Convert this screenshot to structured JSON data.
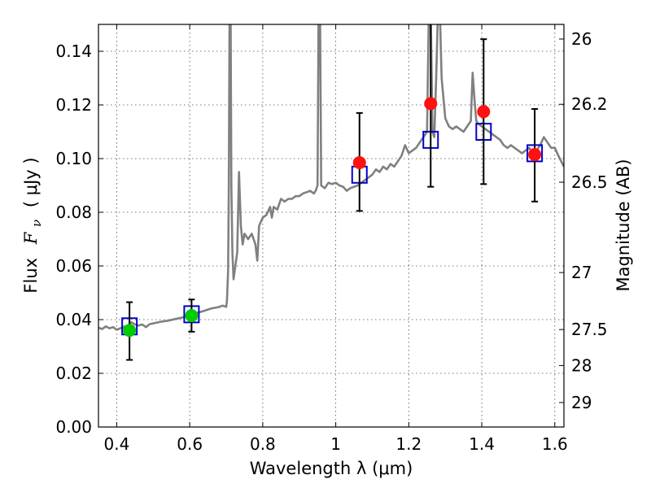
{
  "chart_data": {
    "type": "scatter",
    "xlabel": "Wavelength  λ (μm)",
    "ylabel": "Flux  F_ν ( μJy )",
    "ylabel_parts": {
      "prefix": "Flux",
      "symbol": "F",
      "subscript": "ν",
      "unit": "( μJy )"
    },
    "ylabel_right": "Magnitude (AB)",
    "xlim": [
      0.35,
      1.625
    ],
    "ylim": [
      0.0,
      0.15
    ],
    "grid": true,
    "x_ticks": [
      {
        "value": 0.4,
        "label": "0.4"
      },
      {
        "value": 0.6,
        "label": "0.6"
      },
      {
        "value": 0.8,
        "label": "0.8"
      },
      {
        "value": 1.0,
        "label": "1"
      },
      {
        "value": 1.2,
        "label": "1.2"
      },
      {
        "value": 1.4,
        "label": "1.4"
      },
      {
        "value": 1.6,
        "label": "1.6"
      }
    ],
    "y_ticks": [
      {
        "value": 0.0,
        "label": "0.00"
      },
      {
        "value": 0.02,
        "label": "0.02"
      },
      {
        "value": 0.04,
        "label": "0.04"
      },
      {
        "value": 0.06,
        "label": "0.06"
      },
      {
        "value": 0.08,
        "label": "0.08"
      },
      {
        "value": 0.1,
        "label": "0.10"
      },
      {
        "value": 0.12,
        "label": "0.12"
      },
      {
        "value": 0.14,
        "label": "0.14"
      }
    ],
    "right_ticks": [
      {
        "value": 26,
        "label": "26"
      },
      {
        "value": 26.2,
        "label": "26.2"
      },
      {
        "value": 26.5,
        "label": "26.5"
      },
      {
        "value": 27,
        "label": "27"
      },
      {
        "value": 27.5,
        "label": "27.5"
      },
      {
        "value": 28,
        "label": "28"
      },
      {
        "value": 29,
        "label": "29"
      }
    ],
    "series": [
      {
        "type": "line",
        "color": "#808080",
        "points": [
          [
            0.35,
            0.037
          ],
          [
            0.36,
            0.0365
          ],
          [
            0.37,
            0.0375
          ],
          [
            0.38,
            0.0368
          ],
          [
            0.39,
            0.0372
          ],
          [
            0.4,
            0.0362
          ],
          [
            0.41,
            0.0368
          ],
          [
            0.42,
            0.0374
          ],
          [
            0.43,
            0.0376
          ],
          [
            0.44,
            0.039
          ],
          [
            0.45,
            0.0382
          ],
          [
            0.46,
            0.0378
          ],
          [
            0.47,
            0.0382
          ],
          [
            0.48,
            0.0372
          ],
          [
            0.49,
            0.0383
          ],
          [
            0.5,
            0.0386
          ],
          [
            0.52,
            0.0392
          ],
          [
            0.54,
            0.0396
          ],
          [
            0.56,
            0.0402
          ],
          [
            0.58,
            0.0408
          ],
          [
            0.6,
            0.042
          ],
          [
            0.62,
            0.0425
          ],
          [
            0.64,
            0.0433
          ],
          [
            0.66,
            0.0442
          ],
          [
            0.68,
            0.0447
          ],
          [
            0.69,
            0.0452
          ],
          [
            0.7,
            0.0448
          ],
          [
            0.702,
            0.047
          ],
          [
            0.705,
            0.058
          ],
          [
            0.707,
            0.09
          ],
          [
            0.709,
            0.155
          ],
          [
            0.712,
            0.155
          ],
          [
            0.714,
            0.09
          ],
          [
            0.717,
            0.065
          ],
          [
            0.72,
            0.055
          ],
          [
            0.725,
            0.06
          ],
          [
            0.73,
            0.065
          ],
          [
            0.735,
            0.095
          ],
          [
            0.74,
            0.075
          ],
          [
            0.745,
            0.068
          ],
          [
            0.75,
            0.072
          ],
          [
            0.76,
            0.07
          ],
          [
            0.77,
            0.072
          ],
          [
            0.78,
            0.068
          ],
          [
            0.785,
            0.062
          ],
          [
            0.79,
            0.075
          ],
          [
            0.8,
            0.078
          ],
          [
            0.81,
            0.079
          ],
          [
            0.82,
            0.082
          ],
          [
            0.825,
            0.078
          ],
          [
            0.83,
            0.082
          ],
          [
            0.84,
            0.081
          ],
          [
            0.85,
            0.085
          ],
          [
            0.86,
            0.084
          ],
          [
            0.87,
            0.085
          ],
          [
            0.88,
            0.085
          ],
          [
            0.89,
            0.086
          ],
          [
            0.9,
            0.086
          ],
          [
            0.91,
            0.087
          ],
          [
            0.92,
            0.0875
          ],
          [
            0.93,
            0.088
          ],
          [
            0.94,
            0.087
          ],
          [
            0.945,
            0.088
          ],
          [
            0.95,
            0.09
          ],
          [
            0.953,
            0.155
          ],
          [
            0.957,
            0.155
          ],
          [
            0.96,
            0.09
          ],
          [
            0.97,
            0.089
          ],
          [
            0.98,
            0.091
          ],
          [
            0.99,
            0.0905
          ],
          [
            1.0,
            0.091
          ],
          [
            1.01,
            0.09
          ],
          [
            1.02,
            0.0895
          ],
          [
            1.03,
            0.088
          ],
          [
            1.04,
            0.089
          ],
          [
            1.05,
            0.0895
          ],
          [
            1.06,
            0.09
          ],
          [
            1.07,
            0.091
          ],
          [
            1.08,
            0.092
          ],
          [
            1.09,
            0.093
          ],
          [
            1.1,
            0.094
          ],
          [
            1.11,
            0.096
          ],
          [
            1.12,
            0.095
          ],
          [
            1.13,
            0.097
          ],
          [
            1.14,
            0.096
          ],
          [
            1.15,
            0.098
          ],
          [
            1.16,
            0.097
          ],
          [
            1.17,
            0.099
          ],
          [
            1.18,
            0.101
          ],
          [
            1.19,
            0.105
          ],
          [
            1.2,
            0.102
          ],
          [
            1.21,
            0.103
          ],
          [
            1.22,
            0.104
          ],
          [
            1.23,
            0.106
          ],
          [
            1.24,
            0.108
          ],
          [
            1.25,
            0.11
          ],
          [
            1.255,
            0.155
          ],
          [
            1.26,
            0.155
          ],
          [
            1.265,
            0.11
          ],
          [
            1.27,
            0.108
          ],
          [
            1.275,
            0.13
          ],
          [
            1.28,
            0.155
          ],
          [
            1.285,
            0.155
          ],
          [
            1.29,
            0.13
          ],
          [
            1.3,
            0.115
          ],
          [
            1.31,
            0.112
          ],
          [
            1.32,
            0.111
          ],
          [
            1.33,
            0.112
          ],
          [
            1.34,
            0.111
          ],
          [
            1.35,
            0.11
          ],
          [
            1.36,
            0.112
          ],
          [
            1.37,
            0.114
          ],
          [
            1.375,
            0.132
          ],
          [
            1.38,
            0.122
          ],
          [
            1.385,
            0.114
          ],
          [
            1.39,
            0.113
          ],
          [
            1.4,
            0.112
          ],
          [
            1.41,
            0.111
          ],
          [
            1.42,
            0.11
          ],
          [
            1.43,
            0.109
          ],
          [
            1.44,
            0.108
          ],
          [
            1.45,
            0.107
          ],
          [
            1.46,
            0.105
          ],
          [
            1.47,
            0.104
          ],
          [
            1.48,
            0.105
          ],
          [
            1.49,
            0.104
          ],
          [
            1.5,
            0.103
          ],
          [
            1.51,
            0.102
          ],
          [
            1.52,
            0.103
          ],
          [
            1.53,
            0.104
          ],
          [
            1.54,
            0.102
          ],
          [
            1.55,
            0.103
          ],
          [
            1.56,
            0.105
          ],
          [
            1.57,
            0.108
          ],
          [
            1.58,
            0.106
          ],
          [
            1.59,
            0.104
          ],
          [
            1.6,
            0.104
          ],
          [
            1.61,
            0.101
          ],
          [
            1.625,
            0.097
          ]
        ]
      },
      {
        "type": "model-squares",
        "color": "#0000cc",
        "x": [
          0.435,
          0.605,
          1.065,
          1.26,
          1.405,
          1.545
        ],
        "y": [
          0.0375,
          0.042,
          0.094,
          0.107,
          0.11,
          0.102
        ]
      },
      {
        "type": "points-errorbars",
        "color": "#00cc00",
        "x": [
          0.435,
          0.605
        ],
        "y": [
          0.036,
          0.0415
        ],
        "yerr_low": [
          0.025,
          0.0355
        ],
        "yerr_high": [
          0.0465,
          0.0475
        ]
      },
      {
        "type": "points-errorbars",
        "color": "#ff1111",
        "x": [
          1.065,
          1.26,
          1.405,
          1.545
        ],
        "y": [
          0.0985,
          0.1205,
          0.1175,
          0.1015
        ],
        "yerr_low": [
          0.0805,
          0.0895,
          0.0905,
          0.084
        ],
        "yerr_high": [
          0.117,
          0.155,
          0.1445,
          0.1185
        ]
      }
    ]
  }
}
